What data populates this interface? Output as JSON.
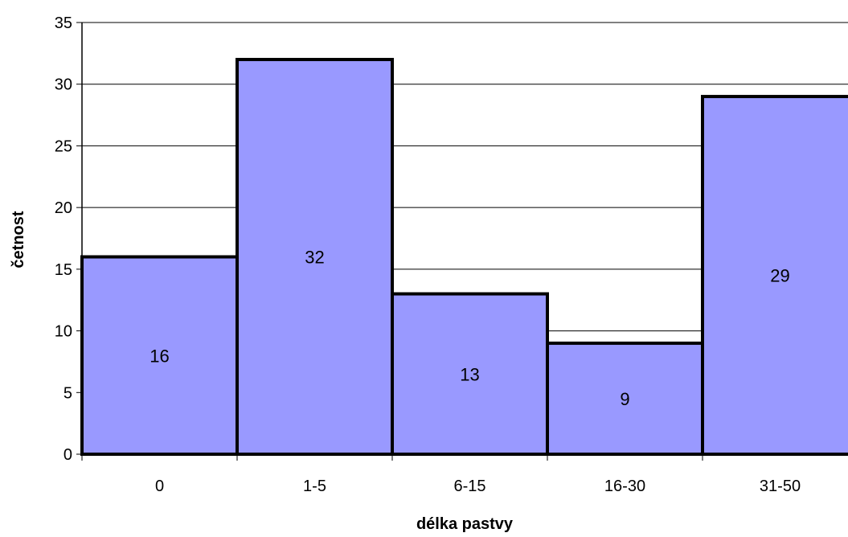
{
  "chart_data": {
    "type": "bar",
    "title": "",
    "xlabel": "délka pastvy",
    "ylabel": "četnost",
    "categories": [
      "0",
      "1-5",
      "6-15",
      "16-30",
      "31-50"
    ],
    "values": [
      16,
      32,
      13,
      9,
      29
    ],
    "ylim": [
      0,
      35
    ],
    "yticks": [
      0,
      5,
      10,
      15,
      20,
      25,
      30,
      35
    ],
    "grid": true,
    "legend": "none",
    "bar_color": "#9999ff",
    "bar_edge_color": "#000000"
  }
}
